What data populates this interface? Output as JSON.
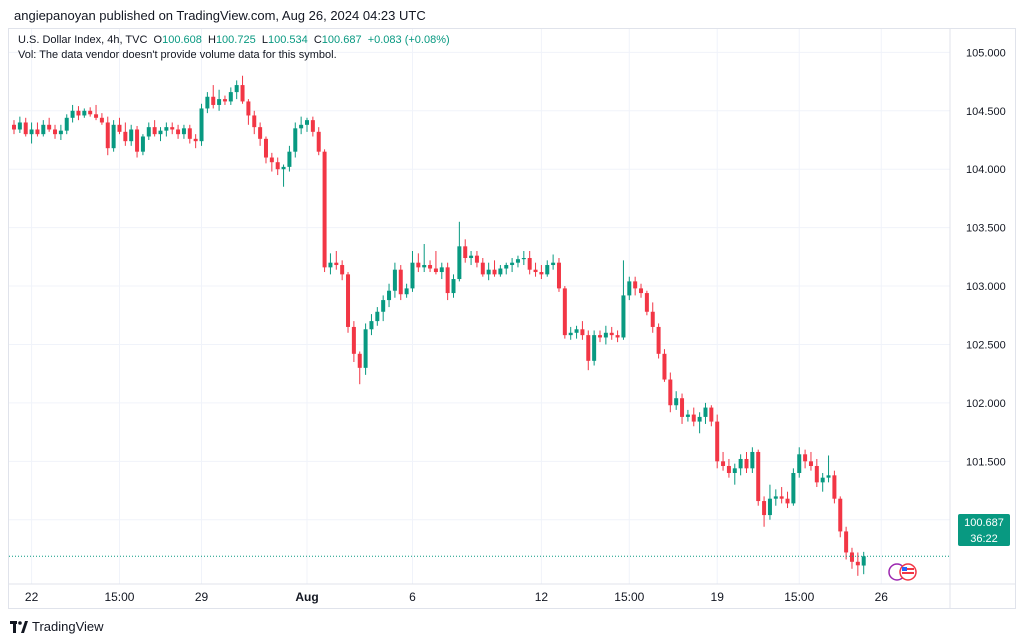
{
  "header": {
    "text": "angiepanoyan published on TradingView.com, Aug 26, 2024 04:23 UTC"
  },
  "legend": {
    "symbol": "U.S. Dollar Index, 4h, TVC",
    "o_label": "O",
    "o_value": "100.608",
    "h_label": "H",
    "h_value": "100.725",
    "l_label": "L",
    "l_value": "100.534",
    "c_label": "C",
    "c_value": "100.687",
    "change": "+0.083 (+0.08%)",
    "vol_note": "Vol: The data vendor doesn't provide volume data for this symbol."
  },
  "price_tag": {
    "price": "100.687",
    "countdown": "36:22"
  },
  "footer": {
    "brand": "TradingView"
  },
  "colors": {
    "up": "#089981",
    "down": "#f23645",
    "grid": "#f0f3fa",
    "text": "#131722"
  },
  "chart_data": {
    "type": "candlestick",
    "title": "U.S. Dollar Index, 4h, TVC",
    "ylim": [
      100.45,
      105.2
    ],
    "yticks": [
      105.0,
      104.5,
      104.0,
      103.5,
      103.0,
      102.5,
      102.0,
      101.5,
      101.0
    ],
    "ytick_labels": [
      "105.000",
      "104.500",
      "104.000",
      "103.500",
      "103.000",
      "102.500",
      "102.000",
      "101.500",
      "101.000"
    ],
    "xticks": [
      {
        "index": 3,
        "label": "22"
      },
      {
        "index": 18,
        "label": "15:00"
      },
      {
        "index": 32,
        "label": "29"
      },
      {
        "index": 50,
        "label": "Aug"
      },
      {
        "index": 68,
        "label": "6"
      },
      {
        "index": 90,
        "label": "12"
      },
      {
        "index": 105,
        "label": "15:00"
      },
      {
        "index": 120,
        "label": "19"
      },
      {
        "index": 134,
        "label": "15:00"
      },
      {
        "index": 148,
        "label": "26"
      }
    ],
    "last_price": 100.687,
    "candles": [
      [
        104.38,
        104.42,
        104.3,
        104.34
      ],
      [
        104.34,
        104.45,
        104.31,
        104.4
      ],
      [
        104.4,
        104.44,
        104.28,
        104.3
      ],
      [
        104.3,
        104.4,
        104.22,
        104.34
      ],
      [
        104.34,
        104.4,
        104.28,
        104.3
      ],
      [
        104.3,
        104.42,
        104.28,
        104.38
      ],
      [
        104.38,
        104.44,
        104.32,
        104.34
      ],
      [
        104.34,
        104.38,
        104.26,
        104.3
      ],
      [
        104.3,
        104.38,
        104.25,
        104.33
      ],
      [
        104.33,
        104.47,
        104.3,
        104.44
      ],
      [
        104.44,
        104.55,
        104.4,
        104.5
      ],
      [
        104.5,
        104.54,
        104.42,
        104.46
      ],
      [
        104.46,
        104.52,
        104.44,
        104.5
      ],
      [
        104.5,
        104.53,
        104.45,
        104.47
      ],
      [
        104.47,
        104.55,
        104.42,
        104.44
      ],
      [
        104.44,
        104.48,
        104.38,
        104.4
      ],
      [
        104.4,
        104.45,
        104.12,
        104.18
      ],
      [
        104.18,
        104.42,
        104.15,
        104.38
      ],
      [
        104.38,
        104.44,
        104.3,
        104.32
      ],
      [
        104.32,
        104.4,
        104.2,
        104.24
      ],
      [
        104.24,
        104.38,
        104.2,
        104.34
      ],
      [
        104.34,
        104.37,
        104.1,
        104.15
      ],
      [
        104.15,
        104.3,
        104.12,
        104.28
      ],
      [
        104.28,
        104.4,
        104.25,
        104.36
      ],
      [
        104.36,
        104.42,
        104.28,
        104.3
      ],
      [
        104.3,
        104.36,
        104.24,
        104.33
      ],
      [
        104.33,
        104.4,
        104.28,
        104.36
      ],
      [
        104.36,
        104.4,
        104.3,
        104.34
      ],
      [
        104.34,
        104.38,
        104.26,
        104.3
      ],
      [
        104.3,
        104.38,
        104.26,
        104.35
      ],
      [
        104.35,
        104.38,
        104.22,
        104.26
      ],
      [
        104.26,
        104.3,
        104.18,
        104.24
      ],
      [
        104.24,
        104.56,
        104.2,
        104.52
      ],
      [
        104.52,
        104.66,
        104.48,
        104.62
      ],
      [
        104.62,
        104.72,
        104.52,
        104.55
      ],
      [
        104.55,
        104.68,
        104.5,
        104.6
      ],
      [
        104.6,
        104.63,
        104.55,
        104.58
      ],
      [
        104.58,
        104.7,
        104.55,
        104.66
      ],
      [
        104.66,
        104.76,
        104.6,
        104.72
      ],
      [
        104.72,
        104.8,
        104.56,
        104.58
      ],
      [
        104.58,
        104.6,
        104.38,
        104.46
      ],
      [
        104.46,
        104.5,
        104.3,
        104.36
      ],
      [
        104.36,
        104.4,
        104.2,
        104.26
      ],
      [
        104.26,
        104.28,
        104.05,
        104.1
      ],
      [
        104.1,
        104.14,
        103.98,
        104.06
      ],
      [
        104.06,
        104.1,
        103.95,
        104.0
      ],
      [
        104.0,
        104.04,
        103.85,
        104.02
      ],
      [
        104.02,
        104.2,
        103.98,
        104.15
      ],
      [
        104.15,
        104.4,
        104.1,
        104.35
      ],
      [
        104.35,
        104.45,
        104.3,
        104.38
      ],
      [
        104.38,
        104.44,
        104.32,
        104.42
      ],
      [
        104.42,
        104.45,
        104.28,
        104.32
      ],
      [
        104.32,
        104.36,
        104.12,
        104.15
      ],
      [
        104.15,
        104.17,
        103.12,
        103.16
      ],
      [
        103.16,
        103.28,
        103.1,
        103.2
      ],
      [
        103.2,
        103.3,
        103.14,
        103.18
      ],
      [
        103.18,
        103.22,
        103.05,
        103.1
      ],
      [
        103.1,
        103.12,
        102.6,
        102.65
      ],
      [
        102.65,
        102.7,
        102.35,
        102.42
      ],
      [
        102.42,
        102.44,
        102.16,
        102.3
      ],
      [
        102.3,
        102.68,
        102.24,
        102.63
      ],
      [
        102.63,
        102.76,
        102.58,
        102.7
      ],
      [
        102.7,
        102.82,
        102.66,
        102.78
      ],
      [
        102.78,
        102.92,
        102.7,
        102.88
      ],
      [
        102.88,
        103.02,
        102.82,
        102.96
      ],
      [
        102.96,
        103.2,
        102.9,
        103.14
      ],
      [
        103.14,
        103.18,
        102.88,
        102.93
      ],
      [
        102.93,
        103.02,
        102.9,
        102.98
      ],
      [
        102.98,
        103.3,
        102.95,
        103.2
      ],
      [
        103.2,
        103.28,
        103.12,
        103.16
      ],
      [
        103.16,
        103.36,
        103.12,
        103.18
      ],
      [
        103.18,
        103.22,
        103.12,
        103.15
      ],
      [
        103.15,
        103.3,
        103.1,
        103.12
      ],
      [
        103.12,
        103.2,
        103.06,
        103.16
      ],
      [
        103.16,
        103.2,
        102.88,
        102.94
      ],
      [
        102.94,
        103.1,
        102.9,
        103.06
      ],
      [
        103.06,
        103.55,
        103.04,
        103.34
      ],
      [
        103.34,
        103.4,
        103.2,
        103.24
      ],
      [
        103.24,
        103.3,
        103.18,
        103.26
      ],
      [
        103.26,
        103.3,
        103.16,
        103.2
      ],
      [
        103.2,
        103.24,
        103.08,
        103.1
      ],
      [
        103.1,
        103.2,
        103.05,
        103.14
      ],
      [
        103.14,
        103.22,
        103.08,
        103.1
      ],
      [
        103.1,
        103.18,
        103.08,
        103.15
      ],
      [
        103.15,
        103.2,
        103.1,
        103.18
      ],
      [
        103.18,
        103.24,
        103.12,
        103.2
      ],
      [
        103.2,
        103.26,
        103.16,
        103.23
      ],
      [
        103.23,
        103.3,
        103.18,
        103.24
      ],
      [
        103.24,
        103.3,
        103.1,
        103.14
      ],
      [
        103.14,
        103.2,
        103.08,
        103.12
      ],
      [
        103.12,
        103.18,
        103.06,
        103.1
      ],
      [
        103.1,
        103.22,
        103.08,
        103.18
      ],
      [
        103.18,
        103.27,
        103.14,
        103.2
      ],
      [
        103.2,
        103.24,
        102.95,
        102.98
      ],
      [
        102.98,
        103.0,
        102.55,
        102.58
      ],
      [
        102.58,
        102.65,
        102.54,
        102.6
      ],
      [
        102.6,
        102.66,
        102.55,
        102.63
      ],
      [
        102.63,
        102.7,
        102.54,
        102.58
      ],
      [
        102.58,
        102.62,
        102.28,
        102.36
      ],
      [
        102.36,
        102.62,
        102.32,
        102.58
      ],
      [
        102.58,
        102.62,
        102.52,
        102.56
      ],
      [
        102.56,
        102.66,
        102.5,
        102.6
      ],
      [
        102.6,
        102.65,
        102.54,
        102.58
      ],
      [
        102.58,
        102.62,
        102.52,
        102.56
      ],
      [
        102.56,
        103.22,
        102.54,
        102.92
      ],
      [
        102.92,
        103.08,
        102.88,
        103.04
      ],
      [
        103.04,
        103.08,
        102.92,
        102.98
      ],
      [
        102.98,
        103.02,
        102.9,
        102.94
      ],
      [
        102.94,
        102.96,
        102.75,
        102.78
      ],
      [
        102.78,
        102.86,
        102.6,
        102.65
      ],
      [
        102.65,
        102.68,
        102.38,
        102.42
      ],
      [
        102.42,
        102.46,
        102.18,
        102.2
      ],
      [
        102.2,
        102.26,
        101.92,
        101.98
      ],
      [
        101.98,
        102.1,
        101.94,
        102.04
      ],
      [
        102.04,
        102.08,
        101.82,
        101.88
      ],
      [
        101.88,
        101.94,
        101.84,
        101.9
      ],
      [
        101.9,
        101.96,
        101.8,
        101.84
      ],
      [
        101.84,
        101.92,
        101.74,
        101.88
      ],
      [
        101.88,
        102.0,
        101.82,
        101.96
      ],
      [
        101.96,
        101.98,
        101.8,
        101.84
      ],
      [
        101.84,
        101.9,
        101.44,
        101.5
      ],
      [
        101.5,
        101.58,
        101.42,
        101.46
      ],
      [
        101.46,
        101.52,
        101.36,
        101.4
      ],
      [
        101.4,
        101.48,
        101.3,
        101.44
      ],
      [
        101.44,
        101.56,
        101.38,
        101.52
      ],
      [
        101.52,
        101.58,
        101.4,
        101.44
      ],
      [
        101.44,
        101.62,
        101.4,
        101.58
      ],
      [
        101.58,
        101.6,
        101.12,
        101.16
      ],
      [
        101.16,
        101.2,
        100.94,
        101.04
      ],
      [
        101.04,
        101.3,
        101.0,
        101.18
      ],
      [
        101.18,
        101.26,
        101.12,
        101.2
      ],
      [
        101.2,
        101.28,
        101.14,
        101.18
      ],
      [
        101.18,
        101.24,
        101.1,
        101.14
      ],
      [
        101.14,
        101.44,
        101.12,
        101.4
      ],
      [
        101.4,
        101.62,
        101.36,
        101.56
      ],
      [
        101.56,
        101.6,
        101.44,
        101.5
      ],
      [
        101.5,
        101.58,
        101.42,
        101.46
      ],
      [
        101.46,
        101.52,
        101.28,
        101.32
      ],
      [
        101.32,
        101.4,
        101.24,
        101.36
      ],
      [
        101.36,
        101.55,
        101.32,
        101.38
      ],
      [
        101.38,
        101.42,
        101.14,
        101.18
      ],
      [
        101.18,
        101.2,
        100.85,
        100.9
      ],
      [
        100.9,
        100.94,
        100.66,
        100.72
      ],
      [
        100.72,
        100.76,
        100.58,
        100.64
      ],
      [
        100.64,
        100.72,
        100.52,
        100.61
      ],
      [
        100.608,
        100.725,
        100.534,
        100.687
      ]
    ]
  }
}
